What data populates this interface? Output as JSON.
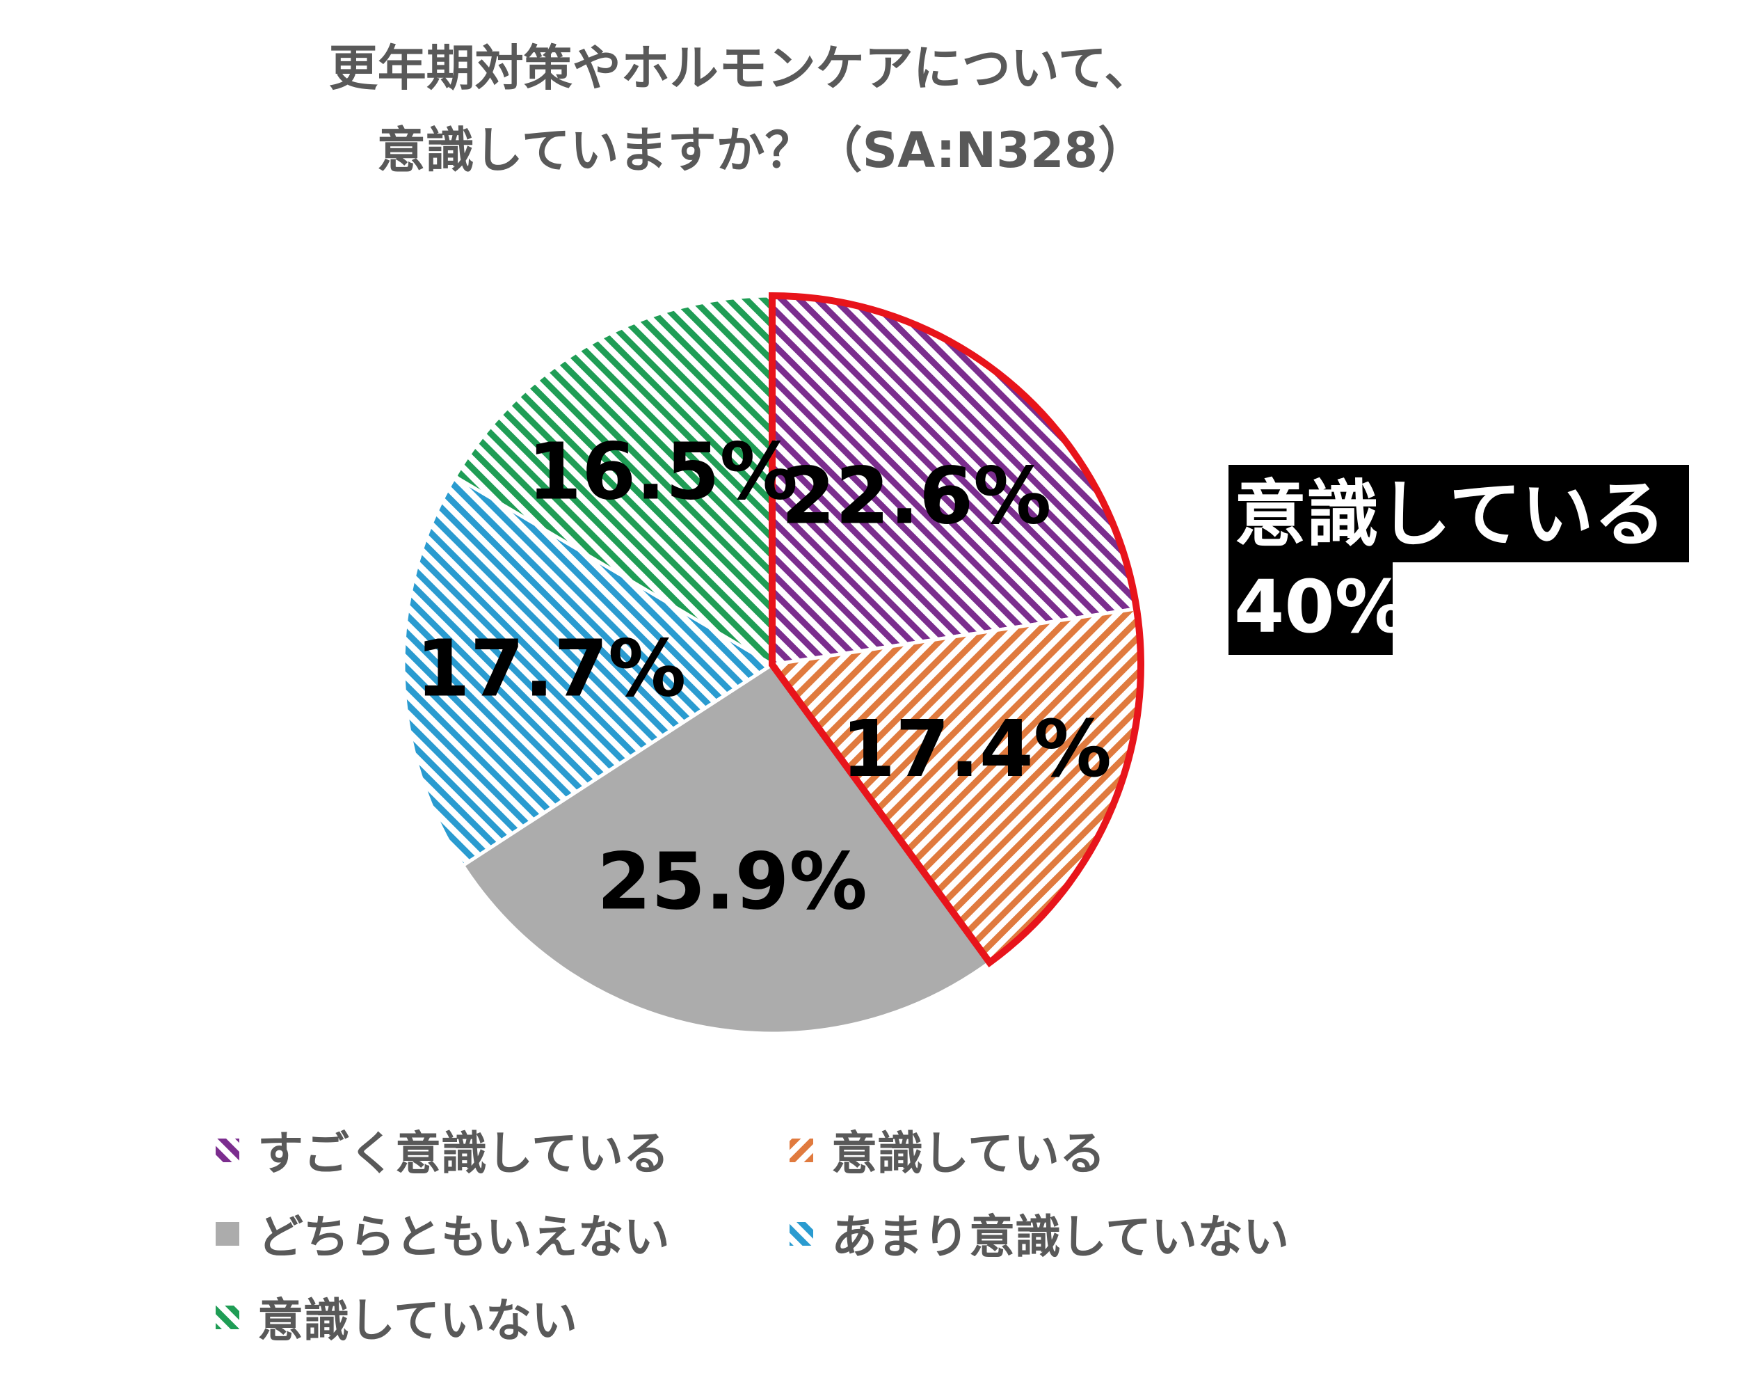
{
  "title": {
    "line1": "更年期対策やホルモンケアについて、",
    "line2": "意識していますか？（SA:N328）"
  },
  "callout": {
    "line1": "意識している",
    "line2": "40%",
    "outline_color": "#e8141b"
  },
  "chart_data": {
    "type": "pie",
    "title": "更年期対策やホルモンケアについて、意識していますか？（SA:N328）",
    "start_angle_deg": 0,
    "direction": "clockwise",
    "legend_position": "bottom",
    "slices": [
      {
        "name": "すごく意識している",
        "value": 22.6,
        "label": "22.6%",
        "color": "#7b2d8e",
        "pattern": "hatch"
      },
      {
        "name": "意識している",
        "value": 17.4,
        "label": "17.4%",
        "color": "#e07a3e",
        "pattern": "hatch"
      },
      {
        "name": "どちらともいえない",
        "value": 25.9,
        "label": "25.9%",
        "color": "#acacac",
        "pattern": "solid"
      },
      {
        "name": "あまり意識していない",
        "value": 17.7,
        "label": "17.7%",
        "color": "#2a9bd0",
        "pattern": "hatch"
      },
      {
        "name": "意識していない",
        "value": 16.5,
        "label": "16.5%",
        "color": "#1f9d55",
        "pattern": "hatch"
      }
    ],
    "highlight": {
      "slices": [
        0,
        1
      ],
      "label": "意識している 40%"
    }
  }
}
